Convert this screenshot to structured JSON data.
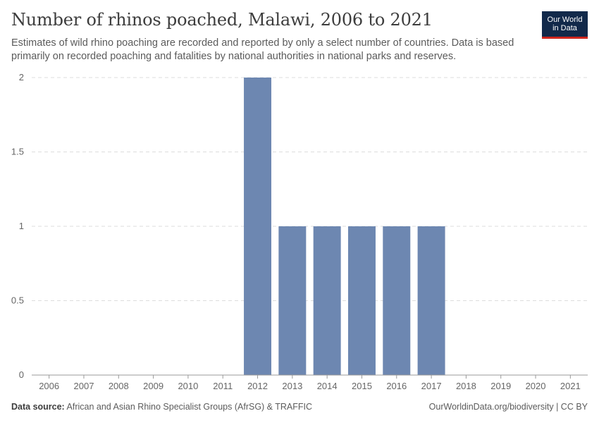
{
  "header": {
    "title": "Number of rhinos poached, Malawi, 2006 to 2021",
    "subtitle": "Estimates of wild rhino poaching are recorded and reported by only a select number of countries. Data is based primarily on recorded poaching and fatalities by national authorities in national parks and reserves.",
    "logo_line1": "Our World",
    "logo_line2": "in Data"
  },
  "footer": {
    "source_label": "Data source:",
    "source_text": "African and Asian Rhino Specialist Groups (AfrSG) & TRAFFIC",
    "credit": "OurWorldinData.org/biodiversity | CC BY"
  },
  "colors": {
    "bar": "#6d87b1",
    "grid": "#dddddd",
    "axis": "#999999",
    "logo_bg": "#12294a",
    "logo_accent": "#ce261e"
  },
  "chart_data": {
    "type": "bar",
    "title": "Number of rhinos poached, Malawi, 2006 to 2021",
    "xlabel": "",
    "ylabel": "",
    "categories": [
      "2006",
      "2007",
      "2008",
      "2009",
      "2010",
      "2011",
      "2012",
      "2013",
      "2014",
      "2015",
      "2016",
      "2017",
      "2018",
      "2019",
      "2020",
      "2021"
    ],
    "values": [
      0,
      0,
      0,
      0,
      0,
      0,
      2,
      1,
      1,
      1,
      1,
      1,
      0,
      0,
      0,
      0
    ],
    "ylim": [
      0,
      2
    ],
    "yticks": [
      0,
      0.5,
      1,
      1.5,
      2
    ],
    "ytick_labels": [
      "0",
      "0.5",
      "1",
      "1.5",
      "2"
    ],
    "grid": "horizontal dashed"
  }
}
